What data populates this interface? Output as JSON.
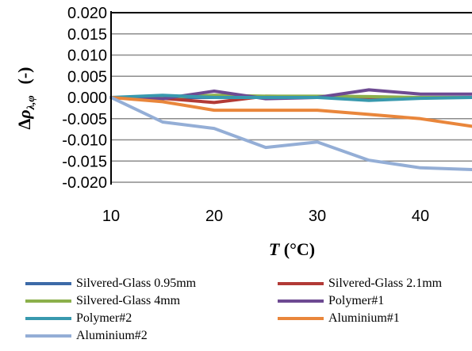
{
  "chart_data": {
    "type": "line",
    "xlabel": "T (°C)",
    "ylabel": "Δρλ,φ (-)",
    "xlim": [
      10,
      45
    ],
    "ylim": [
      -0.02,
      0.02
    ],
    "x_ticks": [
      "10",
      "20",
      "30",
      "40"
    ],
    "y_ticks": [
      "0.020",
      "0.015",
      "0.010",
      "0.005",
      "0.000",
      "-0.005",
      "-0.010",
      "-0.015",
      "-0.020"
    ],
    "grid": true,
    "legend_position": "bottom",
    "x": [
      10,
      15,
      20,
      25,
      30,
      35,
      40,
      45
    ],
    "series": [
      {
        "name": "Silvered-Glass 0.95mm",
        "color": "#3d6aa8",
        "values": [
          0.0,
          0.0,
          0.0,
          0.0002,
          0.0,
          0.0,
          0.0,
          0.0
        ]
      },
      {
        "name": "Silvered-Glass 2.1mm",
        "color": "#b23a36",
        "values": [
          0.0,
          -0.0002,
          -0.0012,
          0.0003,
          0.0002,
          0.0,
          0.0,
          0.0
        ]
      },
      {
        "name": "Silvered-Glass 4mm",
        "color": "#8cb04b",
        "values": [
          0.0,
          0.0,
          0.0005,
          0.0003,
          0.0003,
          0.0002,
          0.0,
          0.0
        ]
      },
      {
        "name": "Polymer#1",
        "color": "#6d4a92",
        "values": [
          0.0,
          -0.0003,
          0.0015,
          -0.0003,
          0.0,
          0.0018,
          0.0008,
          0.0008
        ]
      },
      {
        "name": "Polymer#2",
        "color": "#3899ae",
        "values": [
          0.0,
          0.0005,
          0.0,
          0.0,
          0.0,
          -0.0007,
          -0.0002,
          0.0
        ]
      },
      {
        "name": "Aluminium#1",
        "color": "#e9863b",
        "values": [
          0.0,
          -0.001,
          -0.003,
          -0.003,
          -0.003,
          -0.004,
          -0.005,
          -0.0068
        ]
      },
      {
        "name": "Aluminium#2",
        "color": "#94aed6",
        "values": [
          0.0,
          -0.0058,
          -0.0073,
          -0.0118,
          -0.0105,
          -0.0148,
          -0.0166,
          -0.017
        ]
      }
    ]
  },
  "axis": {
    "x_title_main": "T",
    "x_title_unit": " (°C)",
    "y_title_delta": "Δ",
    "y_title_rho": "ρ",
    "y_title_sub": "λ,φ",
    "y_title_unit": "(-)"
  }
}
